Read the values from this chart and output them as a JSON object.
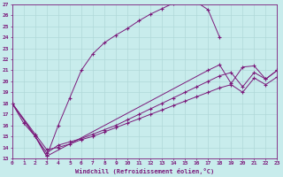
{
  "xlabel": "Windchill (Refroidissement éolien,°C)",
  "bg_color": "#c8ecec",
  "line_color": "#7b1a7b",
  "grid_color": "#b0d8d8",
  "xlim": [
    0,
    23
  ],
  "ylim": [
    13,
    27
  ],
  "xticks": [
    0,
    1,
    2,
    3,
    4,
    5,
    6,
    7,
    8,
    9,
    10,
    11,
    12,
    13,
    14,
    15,
    16,
    17,
    18,
    19,
    20,
    21,
    22,
    23
  ],
  "yticks": [
    13,
    14,
    15,
    16,
    17,
    18,
    19,
    20,
    21,
    22,
    23,
    24,
    25,
    26,
    27
  ],
  "series1_x": [
    0,
    1,
    2,
    3,
    4,
    5,
    6,
    7,
    8,
    9,
    10,
    11,
    12,
    13,
    14,
    15,
    16,
    17,
    18
  ],
  "series1_y": [
    18.0,
    16.2,
    15.0,
    13.2,
    16.0,
    18.5,
    21.0,
    22.5,
    23.5,
    24.2,
    24.8,
    25.5,
    26.1,
    26.6,
    27.1,
    27.3,
    27.2,
    26.5,
    24.0
  ],
  "series2_x": [
    0,
    2,
    3,
    17,
    18,
    19,
    20,
    21,
    22,
    23
  ],
  "series2_y": [
    18.0,
    15.0,
    13.2,
    21.0,
    21.5,
    19.8,
    21.3,
    21.4,
    20.2,
    21.0
  ],
  "series3_x": [
    0,
    2,
    3,
    4,
    5,
    6,
    7,
    8,
    9,
    10,
    11,
    12,
    13,
    14,
    15,
    16,
    17,
    18,
    19,
    20,
    21,
    22,
    23
  ],
  "series3_y": [
    18.0,
    15.0,
    13.5,
    14.2,
    14.5,
    14.8,
    15.2,
    15.6,
    16.0,
    16.5,
    17.0,
    17.5,
    18.0,
    18.5,
    19.0,
    19.5,
    20.0,
    20.5,
    20.8,
    19.5,
    20.8,
    20.2,
    21.0
  ],
  "series4_x": [
    0,
    2,
    3,
    4,
    5,
    6,
    7,
    8,
    9,
    10,
    11,
    12,
    13,
    14,
    15,
    16,
    17,
    18,
    19,
    20,
    21,
    22,
    23
  ],
  "series4_y": [
    18.0,
    15.2,
    13.8,
    14.0,
    14.3,
    14.7,
    15.0,
    15.4,
    15.8,
    16.2,
    16.6,
    17.0,
    17.4,
    17.8,
    18.2,
    18.6,
    19.0,
    19.4,
    19.7,
    19.0,
    20.3,
    19.7,
    20.4
  ]
}
